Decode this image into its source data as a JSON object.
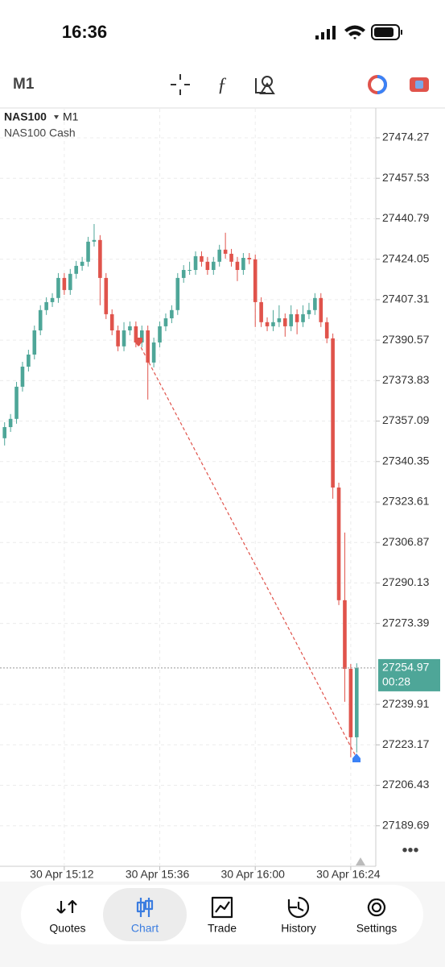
{
  "status_bar": {
    "time": "16:36"
  },
  "toolbar": {
    "timeframe": "M1"
  },
  "chart_data": {
    "type": "candlestick",
    "symbol": "NAS100",
    "timeframe": "M1",
    "description": "NAS100 Cash",
    "categories": [
      null,
      null,
      null,
      null,
      null,
      null,
      null,
      null,
      null,
      null,
      "30 Apr 15:12",
      null,
      null,
      null,
      null,
      null,
      null,
      null,
      null,
      null,
      null,
      null,
      null,
      null,
      null,
      null,
      "30 Apr 15:36",
      null,
      null,
      null,
      null,
      null,
      null,
      null,
      null,
      null,
      null,
      null,
      null,
      null,
      null,
      null,
      "30 Apr 16:00",
      null,
      null,
      null,
      null,
      null,
      null,
      null,
      null,
      null,
      null,
      null,
      null,
      null,
      null,
      null,
      "30 Apr 16:24",
      null
    ],
    "ohlc": [
      [
        27350.0,
        27356.6,
        27347.0,
        27354.6
      ],
      [
        27354.6,
        27360.0,
        27352.6,
        27358.0
      ],
      [
        27358.0,
        27373.3,
        27356.0,
        27371.3
      ],
      [
        27371.3,
        27381.6,
        27369.3,
        27379.6
      ],
      [
        27379.6,
        27386.6,
        27377.6,
        27384.6
      ],
      [
        27384.6,
        27396.6,
        27382.6,
        27394.6
      ],
      [
        27394.6,
        27405.0,
        27392.6,
        27403.0
      ],
      [
        27403.0,
        27408.3,
        27401.0,
        27406.3
      ],
      [
        27406.3,
        27410.0,
        27404.3,
        27408.0
      ],
      [
        27408.0,
        27418.3,
        27406.0,
        27416.3
      ],
      [
        27416.3,
        27418.3,
        27409.3,
        27411.3
      ],
      [
        27411.3,
        27420.0,
        27409.3,
        27418.0
      ],
      [
        27418.0,
        27423.3,
        27416.0,
        27421.3
      ],
      [
        27421.3,
        27425.0,
        27419.3,
        27423.0
      ],
      [
        27423.0,
        27433.3,
        27421.0,
        27431.3
      ],
      [
        27431.3,
        27438.6,
        27429.3,
        27432.0
      ],
      [
        27432.0,
        27434.0,
        27405.0,
        27416.3
      ],
      [
        27416.3,
        27418.3,
        27399.3,
        27401.3
      ],
      [
        27401.3,
        27403.3,
        27392.6,
        27394.6
      ],
      [
        27394.6,
        27396.6,
        27386.0,
        27388.0
      ],
      [
        27388.0,
        27398.0,
        27386.0,
        27394.6
      ],
      [
        27394.6,
        27398.3,
        27392.6,
        27396.3
      ],
      [
        27396.3,
        27398.3,
        27387.6,
        27389.6
      ],
      [
        27389.6,
        27396.6,
        27387.6,
        27394.6
      ],
      [
        27394.6,
        27396.6,
        27366.0,
        27381.3
      ],
      [
        27381.3,
        27391.6,
        27379.3,
        27389.6
      ],
      [
        27389.6,
        27398.3,
        27387.6,
        27396.3
      ],
      [
        27396.3,
        27401.6,
        27394.3,
        27399.6
      ],
      [
        27399.6,
        27405.0,
        27397.6,
        27403.0
      ],
      [
        27403.0,
        27418.3,
        27401.0,
        27416.3
      ],
      [
        27416.3,
        27421.6,
        27414.3,
        27419.6
      ],
      [
        27419.6,
        27423.0,
        27417.6,
        27419.6
      ],
      [
        27419.6,
        27427.3,
        27417.6,
        27425.3
      ],
      [
        27425.3,
        27427.3,
        27421.0,
        27423.0
      ],
      [
        27423.0,
        27425.0,
        27417.6,
        27419.6
      ],
      [
        27419.6,
        27425.0,
        27417.6,
        27423.0
      ],
      [
        27423.0,
        27430.0,
        27421.0,
        27428.0
      ],
      [
        27428.0,
        27435.0,
        27424.3,
        27426.3
      ],
      [
        27426.3,
        27428.3,
        27421.0,
        27423.0
      ],
      [
        27423.0,
        27425.0,
        27415.0,
        27419.6
      ],
      [
        27419.6,
        27426.6,
        27417.6,
        27424.6
      ],
      [
        27424.6,
        27426.6,
        27422.0,
        27424.0
      ],
      [
        27424.0,
        27426.0,
        27396.0,
        27406.3
      ],
      [
        27406.3,
        27408.3,
        27396.0,
        27398.0
      ],
      [
        27398.0,
        27400.0,
        27394.3,
        27396.3
      ],
      [
        27396.3,
        27403.0,
        27394.3,
        27398.0
      ],
      [
        27398.0,
        27405.0,
        27396.0,
        27399.6
      ],
      [
        27399.6,
        27401.6,
        27392.0,
        27396.3
      ],
      [
        27396.3,
        27405.0,
        27394.3,
        27401.3
      ],
      [
        27401.3,
        27403.3,
        27393.0,
        27398.0
      ],
      [
        27398.0,
        27405.0,
        27396.0,
        27401.3
      ],
      [
        27401.3,
        27406.0,
        27399.3,
        27403.0
      ],
      [
        27403.0,
        27410.0,
        27401.0,
        27408.0
      ],
      [
        27408.0,
        27410.0,
        27396.0,
        27398.0
      ],
      [
        27398.0,
        27400.0,
        27389.3,
        27391.3
      ],
      [
        27391.3,
        27393.3,
        27325.0,
        27329.6
      ],
      [
        27329.6,
        27331.6,
        27281.0,
        27283.0
      ],
      [
        27283.0,
        27311.0,
        27241.0,
        27254.6
      ],
      [
        27254.6,
        27256.6,
        27218.0,
        27226.3
      ],
      [
        27226.3,
        27256.9,
        27220.0,
        27254.97
      ]
    ],
    "up_color": "#4ea698",
    "down_color": "#e0534b",
    "ylim": [
      27172.94,
      27486.27
    ],
    "yticks": [
      27474.27,
      27457.53,
      27440.79,
      27424.05,
      27407.31,
      27390.57,
      27373.83,
      27357.09,
      27340.35,
      27323.61,
      27306.87,
      27290.13,
      27273.39,
      27239.91,
      27223.17,
      27206.43,
      27189.69
    ],
    "last_price": 27254.97,
    "countdown": "00:28",
    "grid": true
  },
  "nav": {
    "items": [
      "Quotes",
      "Chart",
      "Trade",
      "History",
      "Settings"
    ],
    "active": 1
  }
}
